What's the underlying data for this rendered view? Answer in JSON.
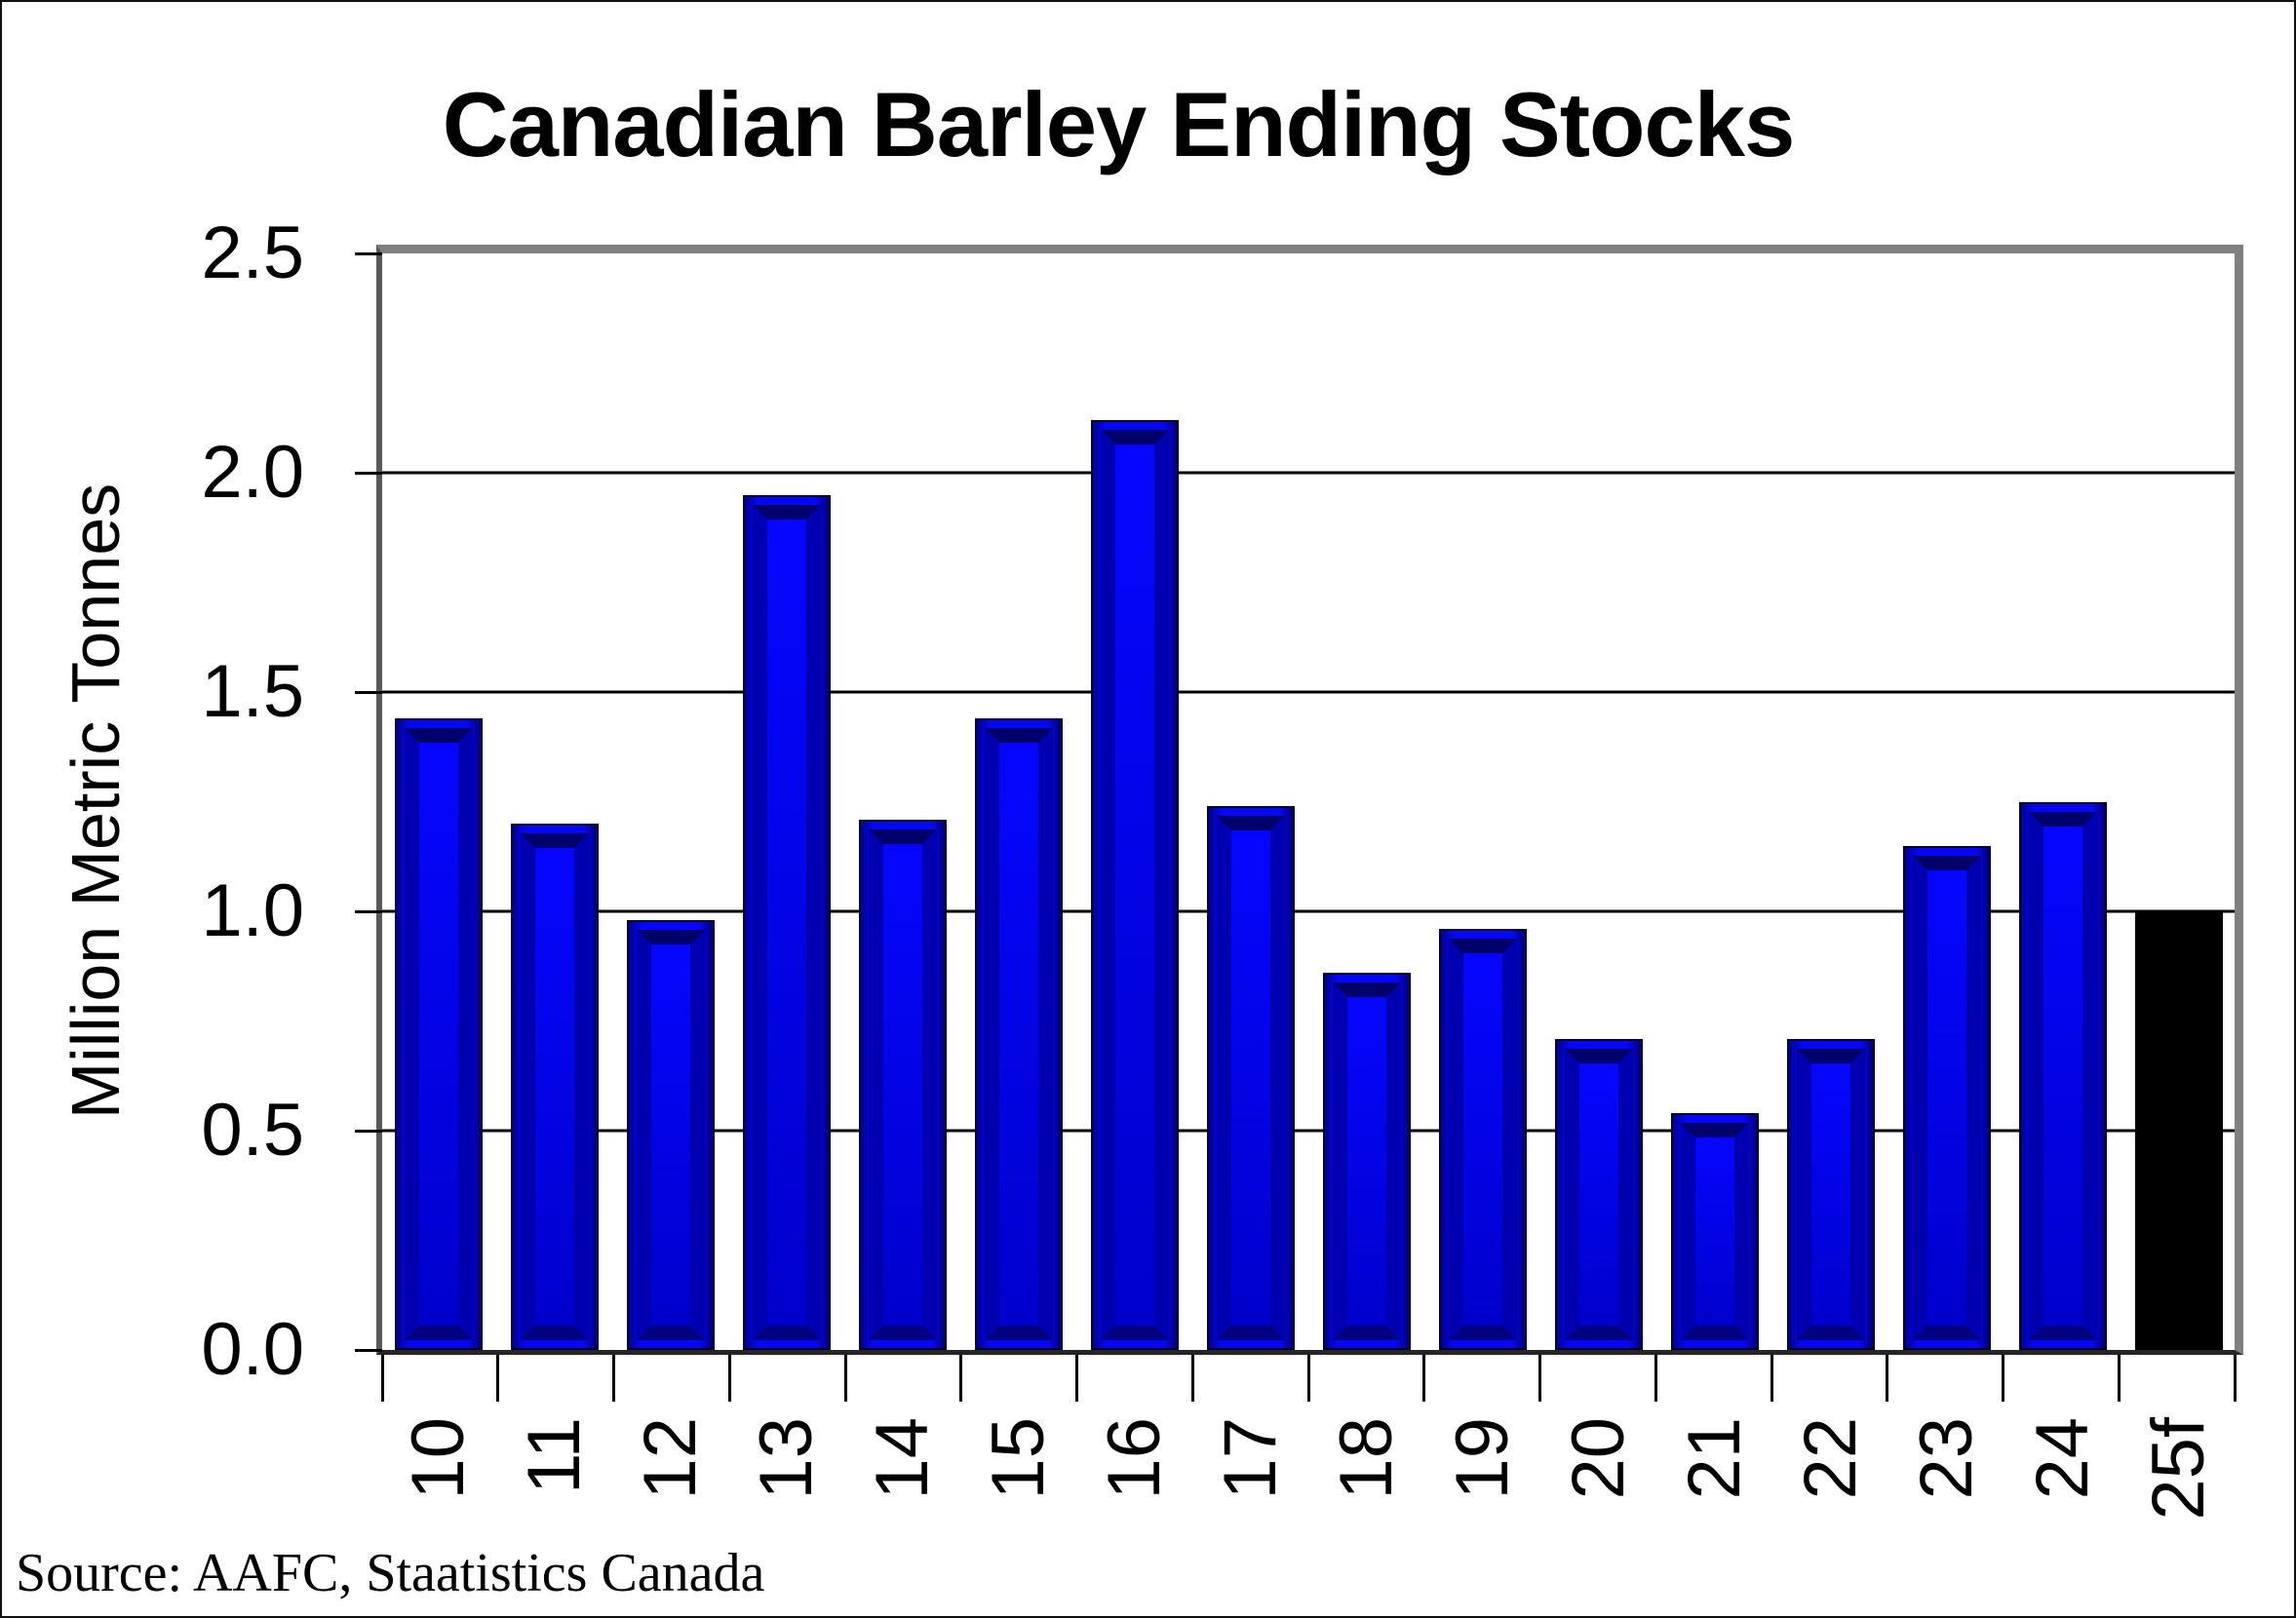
{
  "chart_data": {
    "type": "bar",
    "title": "Canadian Barley Ending Stocks",
    "ylabel": "Million Metric Tonnes",
    "xlabel": "",
    "categories": [
      "10",
      "11",
      "12",
      "13",
      "14",
      "15",
      "16",
      "17",
      "18",
      "19",
      "20",
      "21",
      "22",
      "23",
      "24",
      "25f"
    ],
    "values": [
      1.44,
      1.2,
      0.98,
      1.95,
      1.21,
      1.44,
      2.12,
      1.24,
      0.86,
      0.96,
      0.71,
      0.54,
      0.71,
      1.15,
      1.25,
      1.0
    ],
    "forecast_category": "25f",
    "ylim": [
      0,
      2.5
    ],
    "ytick_labels": [
      "2.5",
      "2.0",
      "1.5",
      "1.0",
      "0.5",
      "0.0"
    ],
    "gridline_values": [
      2.0,
      1.5,
      1.0,
      0.5
    ],
    "grid": true,
    "legend": "none",
    "bar_color": "#0707f7",
    "bar_bevel_dark": "#00006a",
    "forecast_bar_color": "#000000",
    "plot_border_color": "#808080",
    "gridline_color": "#000000"
  },
  "source_note": "Source: AAFC, Staatistics Canada"
}
